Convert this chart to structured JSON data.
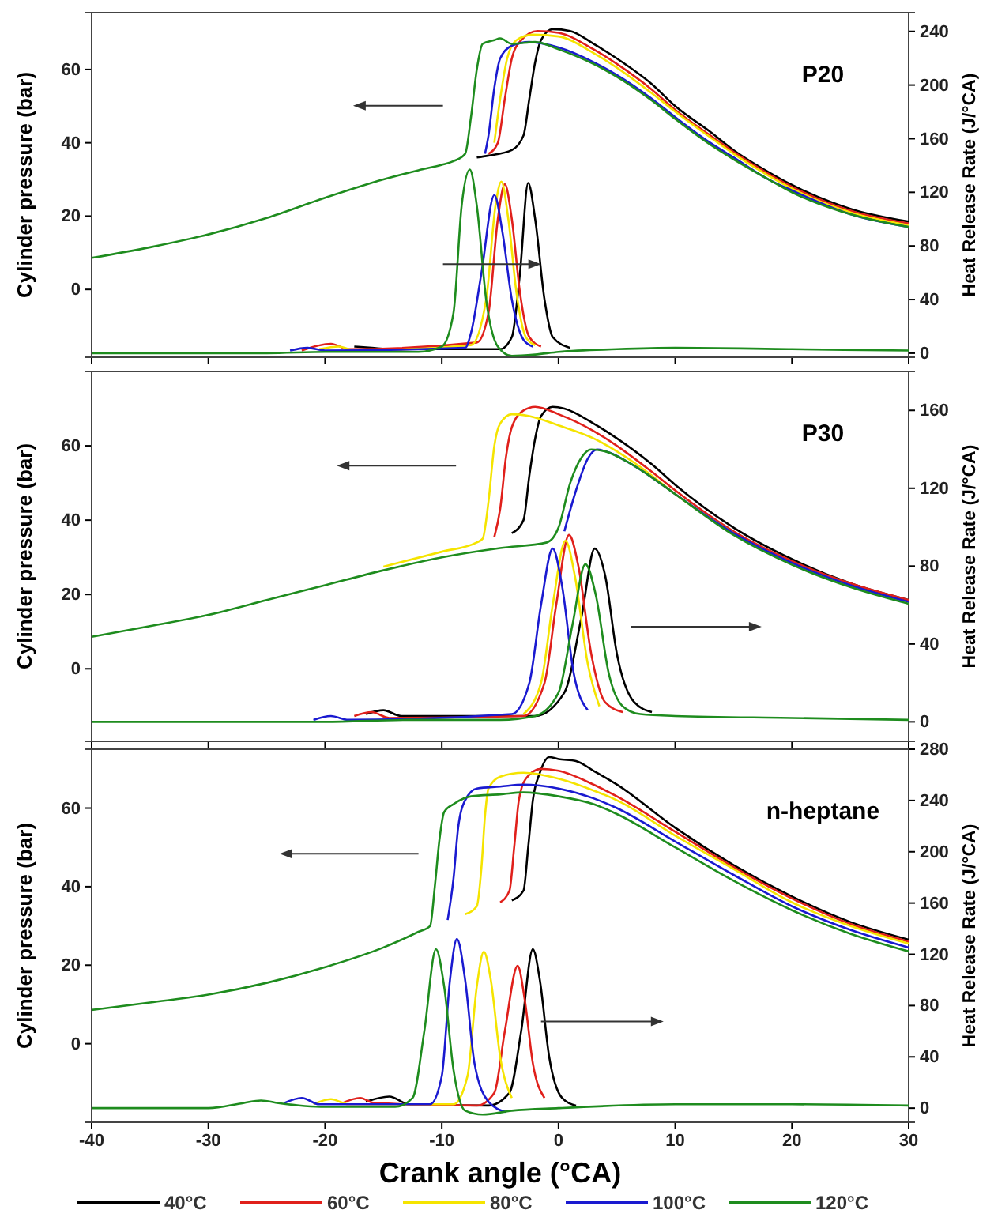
{
  "chart_data": [
    {
      "type": "line",
      "title": "P20",
      "ylabel": "Cylinder pressure (bar)",
      "y2label": "Heat Release Rate (J/°CA)",
      "xlim": [
        -40,
        30
      ],
      "xticks": [
        -40,
        -30,
        -20,
        -10,
        0,
        10,
        20,
        30
      ],
      "ylim": [
        -18.5,
        75.5
      ],
      "yticks": [
        0,
        20,
        40,
        60
      ],
      "y2lim": [
        -3,
        254
      ],
      "y2ticks": [
        0,
        40,
        80,
        120,
        160,
        200,
        240
      ],
      "tick_labels": "y",
      "series": [
        {
          "color": "#000000",
          "x": [
            -7,
            -6,
            -4,
            -3,
            -2.5,
            -2,
            -1.5,
            -0.5,
            1,
            3,
            5,
            8,
            10,
            13,
            15,
            18,
            20,
            25,
            30
          ],
          "values": [
            36,
            36.5,
            38,
            42,
            52,
            62,
            68,
            71,
            70.5,
            67,
            63,
            56,
            50,
            43,
            38,
            32,
            28.5,
            22,
            18.5
          ]
        },
        {
          "color": "#e0201b",
          "x": [
            -6,
            -5.2,
            -4.6,
            -4,
            -3.2,
            -1.8,
            0,
            3,
            5,
            8,
            10,
            13,
            15,
            18,
            20,
            25,
            30
          ],
          "values": [
            37,
            40,
            52,
            63,
            68,
            70.5,
            70,
            65.5,
            61.5,
            54.5,
            49,
            42,
            37.5,
            31.5,
            28,
            21.5,
            18
          ]
        },
        {
          "color": "#f5e400",
          "x": [
            -5.5,
            -5,
            -4.4,
            -3.6,
            -2.2,
            0,
            3,
            5,
            8,
            10,
            13,
            15,
            18,
            20,
            25,
            30
          ],
          "values": [
            40,
            52,
            63,
            68,
            69.5,
            69,
            64.5,
            60.5,
            53.5,
            48.5,
            41.5,
            37,
            31,
            27.5,
            21,
            17.5
          ]
        },
        {
          "color": "#1a1ad0",
          "x": [
            -6.3,
            -6,
            -5.5,
            -5,
            -4,
            -2.5,
            0,
            3,
            5,
            8,
            10,
            13,
            15,
            18,
            20,
            25,
            30
          ],
          "values": [
            37,
            42,
            55,
            63,
            66.5,
            67.5,
            66,
            62,
            58.5,
            52,
            47,
            40,
            36,
            30,
            27,
            20.5,
            17
          ]
        },
        {
          "color": "#1e8c1e",
          "x": [
            -40,
            -35,
            -30,
            -25,
            -20,
            -15,
            -12,
            -10,
            -9,
            -8,
            -7.5,
            -7,
            -6.5,
            -5.5,
            -5,
            -4,
            -2,
            0,
            3,
            5,
            8,
            10,
            13,
            15,
            18,
            20,
            25,
            30
          ],
          "values": [
            8.6,
            11.5,
            15,
            19.5,
            25,
            30,
            32.5,
            34,
            35,
            37,
            47,
            60,
            67,
            68,
            68.5,
            67,
            67.5,
            65.5,
            61.5,
            58,
            51.5,
            46.5,
            39.5,
            35.5,
            30,
            26.5,
            20.5,
            17
          ]
        },
        {
          "color": "#000000",
          "axis": "y2",
          "x": [
            -17.5,
            -16,
            -14,
            -5,
            -4,
            -3.3,
            -2.6,
            -2,
            -1.2,
            -0.5,
            1
          ],
          "values": [
            5,
            4,
            3,
            3,
            12,
            60,
            127,
            100,
            40,
            12,
            4
          ]
        },
        {
          "color": "#e0201b",
          "axis": "y2",
          "x": [
            -22,
            -19.5,
            -18,
            -7,
            -6,
            -5.2,
            -4.6,
            -4,
            -3.3,
            -2.5,
            -1.5
          ],
          "values": [
            2,
            7,
            3,
            8,
            30,
            100,
            126,
            100,
            45,
            12,
            5
          ]
        },
        {
          "color": "#f5e400",
          "axis": "y2",
          "x": [
            -20.5,
            -18.8,
            -17.5,
            -7.5,
            -6.2,
            -5.4,
            -4.9,
            -4.3,
            -3.6,
            -2.8,
            -2
          ],
          "values": [
            3,
            5,
            2,
            6,
            40,
            110,
            128,
            100,
            45,
            12,
            6
          ]
        },
        {
          "color": "#1a1ad0",
          "axis": "y2",
          "x": [
            -23,
            -21.5,
            -20,
            -8,
            -7.5,
            -6.6,
            -5.5,
            -4.8,
            -4,
            -3,
            -2.2
          ],
          "values": [
            2,
            4,
            2,
            4,
            15,
            60,
            118,
            90,
            40,
            10,
            5
          ]
        },
        {
          "color": "#1e8c1e",
          "axis": "y2",
          "x": [
            -40,
            -25,
            -20,
            -15,
            -12,
            -10,
            -9,
            -8.3,
            -7.6,
            -7,
            -6.2,
            -5.2,
            -4,
            -2,
            0,
            5,
            10,
            20,
            30
          ],
          "values": [
            0,
            0,
            1,
            1,
            1,
            5,
            30,
            110,
            137,
            110,
            40,
            5,
            -2,
            -1,
            1,
            3,
            4,
            3,
            2
          ]
        }
      ]
    },
    {
      "type": "line",
      "title": "P30",
      "ylabel": "Cylinder pressure (bar)",
      "y2label": "Heat Release Rate (J/°CA)",
      "xlim": [
        -40,
        30
      ],
      "xticks": [
        -40,
        -30,
        -20,
        -10,
        0,
        10,
        20,
        30
      ],
      "ylim": [
        -19.5,
        80
      ],
      "yticks": [
        0,
        20,
        40,
        60
      ],
      "y2lim": [
        -10,
        180
      ],
      "y2ticks": [
        0,
        40,
        80,
        120,
        160
      ],
      "tick_labels": "y",
      "series": [
        {
          "color": "#000000",
          "x": [
            -4,
            -3,
            -2.5,
            -2,
            -1.5,
            -0.5,
            0.5,
            3,
            5,
            8,
            10,
            15,
            20,
            25,
            30
          ],
          "values": [
            36.5,
            40,
            52,
            62,
            68,
            70.5,
            70,
            66,
            62,
            55,
            49.5,
            38,
            29.5,
            23,
            18.5
          ]
        },
        {
          "color": "#e0201b",
          "x": [
            -5.5,
            -5,
            -4.5,
            -4,
            -3,
            -2,
            0,
            3,
            5,
            8,
            10,
            15,
            20,
            25,
            30
          ],
          "values": [
            35.5,
            43,
            57,
            65,
            69.5,
            70.5,
            68.5,
            64,
            60,
            53,
            48,
            37,
            29,
            23,
            18.5
          ]
        },
        {
          "color": "#f5e400",
          "x": [
            -15,
            -10,
            -7,
            -6.5,
            -6,
            -5.5,
            -5,
            -4,
            -2.5,
            0,
            3,
            5,
            8,
            10,
            15
          ],
          "values": [
            27.5,
            31.5,
            34,
            35,
            45,
            60,
            66,
            68.5,
            68,
            65.5,
            62,
            58.5,
            52,
            47,
            36.5
          ]
        },
        {
          "color": "#1a1ad0",
          "x": [
            0.5,
            1.5,
            2.5,
            3.3,
            4.5,
            6,
            8,
            10,
            15,
            20,
            25,
            30
          ],
          "values": [
            37,
            48,
            56.5,
            59,
            58,
            55.5,
            51.5,
            47,
            36.5,
            28.5,
            22.5,
            18
          ]
        },
        {
          "color": "#1e8c1e",
          "x": [
            -40,
            -35,
            -30,
            -25,
            -20,
            -15,
            -10,
            -5,
            -1,
            0,
            1,
            2,
            2.8,
            4,
            6,
            8,
            10,
            15,
            20,
            25,
            30
          ],
          "values": [
            8.6,
            11.5,
            14.5,
            18.5,
            22.5,
            26.5,
            30,
            32.5,
            34,
            38,
            50,
            57,
            59,
            58.5,
            55.5,
            51.5,
            47,
            36,
            28,
            22,
            17.5
          ]
        },
        {
          "color": "#000000",
          "axis": "y2",
          "x": [
            -16.5,
            -15,
            -13.5,
            -2,
            0.5,
            2,
            3.1,
            4,
            5,
            6.5,
            8
          ],
          "values": [
            4,
            6,
            3,
            3,
            15,
            55,
            89,
            75,
            35,
            10,
            5
          ]
        },
        {
          "color": "#e0201b",
          "axis": "y2",
          "x": [
            -17.5,
            -16,
            -14.5,
            -3,
            -1.2,
            -0.2,
            0.9,
            1.7,
            2.8,
            4,
            5.5
          ],
          "values": [
            3,
            5,
            2,
            3,
            20,
            60,
            96,
            80,
            35,
            10,
            5
          ]
        },
        {
          "color": "#f5e400",
          "axis": "y2",
          "x": [
            -3,
            -1.5,
            -0.5,
            0.6,
            1.4,
            2.5,
            3.5
          ],
          "values": [
            4,
            20,
            60,
            93,
            75,
            30,
            8
          ]
        },
        {
          "color": "#1a1ad0",
          "axis": "y2",
          "x": [
            -21,
            -19.5,
            -18,
            -4,
            -2.5,
            -1.5,
            -0.5,
            0.3,
            1.3,
            2.5
          ],
          "values": [
            1,
            3,
            1,
            4,
            20,
            60,
            89,
            70,
            25,
            6
          ]
        },
        {
          "color": "#1e8c1e",
          "axis": "y2",
          "x": [
            -40,
            -25,
            -20,
            -13,
            -5,
            -2,
            0,
            1.2,
            2.3,
            3.2,
            4.3,
            5.5,
            7,
            10,
            20,
            30
          ],
          "values": [
            0,
            0,
            0,
            1,
            1,
            3,
            15,
            50,
            81,
            65,
            25,
            8,
            4,
            3,
            2,
            1
          ]
        }
      ]
    },
    {
      "type": "line",
      "title": "n-heptane",
      "xlabel": "Crank angle (°CA)",
      "ylabel": "Cylinder pressure (bar)",
      "y2label": "Heat Release Rate (J/°CA)",
      "xlim": [
        -40,
        30
      ],
      "xticks": [
        -40,
        -30,
        -20,
        -10,
        0,
        10,
        20,
        30
      ],
      "ylim": [
        -20,
        75
      ],
      "yticks": [
        0,
        20,
        40,
        60
      ],
      "y2lim": [
        -11,
        280
      ],
      "y2ticks": [
        0,
        40,
        80,
        120,
        160,
        200,
        240,
        280
      ],
      "legend": "bottom",
      "series": [
        {
          "name": "40°C",
          "color": "#000000",
          "x": [
            -4,
            -3,
            -2.6,
            -2.2,
            -1.6,
            -0.8,
            0,
            1.5,
            3,
            5,
            10,
            15,
            20,
            25,
            30
          ],
          "values": [
            36.5,
            39,
            50,
            62,
            69,
            73,
            72.5,
            72,
            69.5,
            66,
            55,
            45.5,
            37.5,
            31,
            26.5
          ]
        },
        {
          "name": "60°C",
          "color": "#e0201b",
          "x": [
            -5,
            -4.2,
            -3.8,
            -3.4,
            -2.8,
            -1.5,
            0,
            3,
            5,
            10,
            15,
            20,
            25,
            30
          ],
          "values": [
            36,
            39,
            50,
            62,
            67.5,
            70,
            69.5,
            66,
            63,
            54,
            45,
            37,
            30.5,
            26
          ]
        },
        {
          "name": "80°C",
          "color": "#f5e400",
          "x": [
            -8,
            -7,
            -6.6,
            -6.3,
            -6,
            -5,
            -3,
            0,
            3,
            5,
            10,
            15,
            20,
            25,
            30
          ],
          "values": [
            33,
            35,
            45,
            58,
            65,
            68,
            69,
            67.5,
            64.5,
            62,
            53,
            44.5,
            36,
            30,
            25.5
          ]
        },
        {
          "name": "100°C",
          "color": "#1a1ad0",
          "x": [
            -9.5,
            -9,
            -8.6,
            -8,
            -7,
            -5,
            -3,
            0,
            3,
            5,
            10,
            15,
            20,
            25,
            30
          ],
          "values": [
            31.5,
            42,
            55,
            62,
            65,
            65.5,
            66,
            65,
            62.5,
            60,
            51.5,
            43,
            35,
            29,
            24.5
          ]
        },
        {
          "name": "120°C",
          "color": "#1e8c1e",
          "x": [
            -40,
            -35,
            -30,
            -25,
            -20,
            -15,
            -12,
            -11,
            -10.6,
            -10.2,
            -9.8,
            -9,
            -7.5,
            -5,
            -3,
            0,
            3,
            5,
            10,
            15,
            20,
            25,
            30
          ],
          "values": [
            8.6,
            10.5,
            12.5,
            15.5,
            19.5,
            24.5,
            28.5,
            30,
            40,
            52,
            59,
            61,
            63,
            63.5,
            64,
            63,
            61,
            58.5,
            50,
            41.5,
            34,
            28,
            23.5
          ]
        },
        {
          "color": "#000000",
          "axis": "y2",
          "x": [
            -16.5,
            -14.5,
            -12.8,
            -6,
            -4.2,
            -3.2,
            -2.2,
            -1.6,
            -0.8,
            0.3,
            1.5
          ],
          "values": [
            5,
            9,
            3,
            2,
            12,
            60,
            124,
            100,
            40,
            8,
            2
          ]
        },
        {
          "color": "#e0201b",
          "axis": "y2",
          "x": [
            -18.5,
            -17,
            -15.8,
            -7,
            -5.5,
            -4.6,
            -3.5,
            -2.9,
            -2.2,
            -1.2
          ],
          "values": [
            4,
            8,
            4,
            2,
            12,
            60,
            111,
            85,
            35,
            8
          ]
        },
        {
          "color": "#f5e400",
          "axis": "y2",
          "x": [
            -21,
            -19.5,
            -18,
            -9,
            -7.8,
            -7,
            -6.4,
            -5.8,
            -5,
            -4
          ],
          "values": [
            3,
            7,
            3,
            3,
            25,
            95,
            122,
            100,
            40,
            8
          ]
        },
        {
          "color": "#1a1ad0",
          "axis": "y2",
          "x": [
            -23.5,
            -22,
            -20.5,
            -11,
            -10,
            -9.3,
            -8.7,
            -8,
            -7.2,
            -6,
            -4.5
          ],
          "values": [
            4,
            8,
            3,
            3,
            25,
            100,
            132,
            100,
            35,
            5,
            -3
          ]
        },
        {
          "color": "#1e8c1e",
          "axis": "y2",
          "x": [
            -40,
            -30,
            -27,
            -25.5,
            -24,
            -20,
            -14,
            -12.5,
            -11.5,
            -10.5,
            -9.8,
            -9,
            -8,
            -6.5,
            -4,
            0,
            10,
            20,
            30
          ],
          "values": [
            0,
            0,
            4,
            6,
            4,
            1,
            1,
            8,
            60,
            124,
            95,
            30,
            -2,
            -5,
            -2,
            0,
            3,
            3,
            2
          ]
        }
      ]
    }
  ]
}
